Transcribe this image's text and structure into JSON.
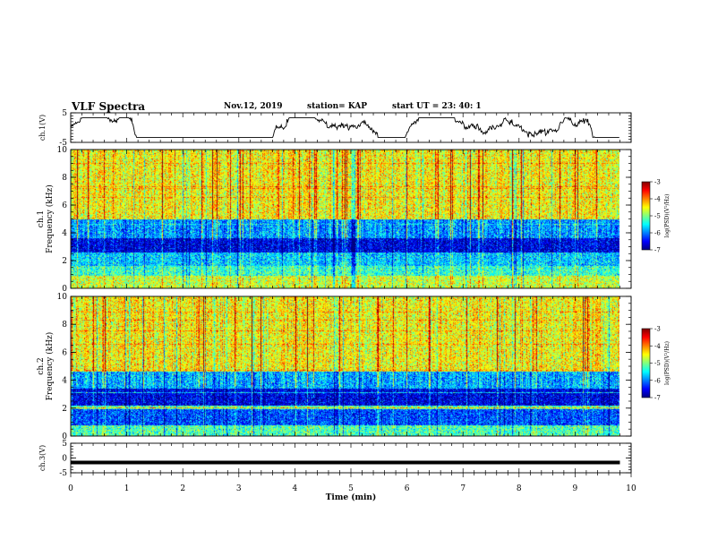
{
  "header": {
    "title": "VLF Spectra",
    "date": "Nov.12, 2019",
    "station": "station= KAP",
    "start": "start  UT =   23: 40: 1"
  },
  "chart_data": [
    {
      "type": "line",
      "ylabel": "ch.1(V)",
      "ylim": [
        -5,
        5
      ],
      "yticks": [
        5,
        -5
      ],
      "xlim": [
        0,
        10
      ],
      "shape": "noisy waveform oscillating roughly between -3 and 3 V over 0–9.8 min"
    },
    {
      "type": "heatmap",
      "ylabel_line1": "ch.1",
      "ylabel_line2": "Frequency (kHz)",
      "ylim": [
        0,
        10
      ],
      "yticks": [
        0,
        2,
        4,
        6,
        8,
        10
      ],
      "xlim": [
        0,
        10
      ],
      "data_extent_min": 9.8,
      "colorbar": {
        "label": "log(PSD)(V²/Hz)",
        "range": [
          -7,
          -3
        ],
        "ticks": [
          -3,
          -4,
          -5,
          -6,
          -7
        ]
      },
      "bands": [
        {
          "f": [
            0,
            0.9
          ],
          "level": -4.7
        },
        {
          "f": [
            0.9,
            1.6
          ],
          "level": -5.3
        },
        {
          "f": [
            1.6,
            2.6
          ],
          "level": -5.7
        },
        {
          "f": [
            2.6,
            3.6
          ],
          "level": -6.6
        },
        {
          "f": [
            3.6,
            5.0
          ],
          "level": -5.9
        },
        {
          "f": [
            5.0,
            10.0
          ],
          "level": -4.5
        }
      ]
    },
    {
      "type": "heatmap",
      "ylabel_line1": "ch.2",
      "ylabel_line2": "Frequency (kHz)",
      "ylim": [
        0,
        10
      ],
      "yticks": [
        0,
        2,
        4,
        6,
        8,
        10
      ],
      "xlim": [
        0,
        10
      ],
      "data_extent_min": 9.8,
      "colorbar": {
        "label": "log(PSD)(V²/Hz)",
        "range": [
          -7,
          -3
        ],
        "ticks": [
          -3,
          -4,
          -5,
          -6,
          -7
        ]
      },
      "bands": [
        {
          "f": [
            0,
            0.8
          ],
          "level": -5.2
        },
        {
          "f": [
            0.8,
            1.9
          ],
          "level": -6.2
        },
        {
          "f": [
            1.9,
            2.2
          ],
          "level": -5.2
        },
        {
          "f": [
            2.2,
            3.4
          ],
          "level": -6.6
        },
        {
          "f": [
            3.4,
            4.6
          ],
          "level": -5.8
        },
        {
          "f": [
            4.6,
            10.0
          ],
          "level": -4.5
        }
      ]
    },
    {
      "type": "line",
      "ylabel": "ch.3(V)",
      "ylim": [
        -5,
        5
      ],
      "yticks": [
        5,
        0,
        -5
      ],
      "xlim": [
        0,
        10
      ],
      "constant_value": -1.5,
      "xlabel": "Time (min)",
      "xticks": [
        0,
        1,
        2,
        3,
        4,
        5,
        6,
        7,
        8,
        9,
        10
      ]
    }
  ]
}
